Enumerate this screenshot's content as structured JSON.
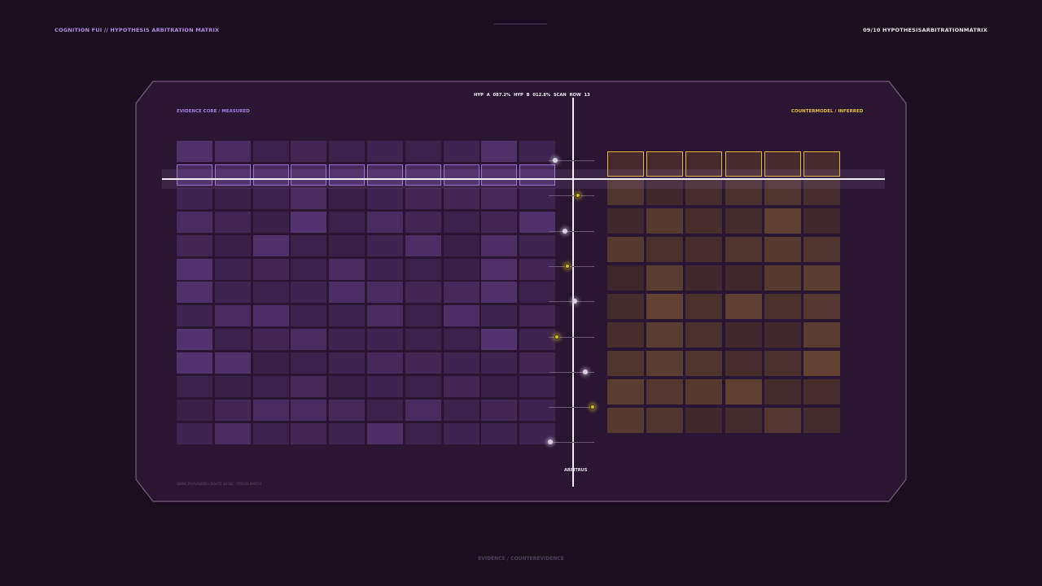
{
  "header": {
    "left_title": "COGNITION FUI // HYPOTHESIS ARBITRATION MATRIX",
    "right_title": "09/10  HYPOTHESISARBITRATIONMATRIX"
  },
  "panel": {
    "left_label": "EVIDENCE CORE / MEASURED",
    "right_label": "COUNTERMODEL / INFERRED",
    "readout": "HYP A 087.2%  HYP B 012.8%  SCAN ROW 13",
    "arbiter_label": "ARBITRUS",
    "footer_meta": "SEMIC PROVABERS  /  ROUTE 14 SEC  /  FOCUS MATCH",
    "colors": {
      "evidence_accent": "#9a6fd8",
      "counter_accent": "#e6b93a",
      "frame": "#6b4a6f"
    }
  },
  "evidence_grid": {
    "cols": 10,
    "rows": 13,
    "highlight_row": 1,
    "levels": [
      [
        0.55,
        0.45,
        0.25,
        0.35,
        0.25,
        0.3,
        0.25,
        0.3,
        0.55,
        0.3
      ],
      [
        0.6,
        0.6,
        0.6,
        0.6,
        0.6,
        0.6,
        0.6,
        0.6,
        0.6,
        0.6
      ],
      [
        0.3,
        0.2,
        0.25,
        0.45,
        0.2,
        0.3,
        0.35,
        0.35,
        0.4,
        0.3
      ],
      [
        0.45,
        0.35,
        0.2,
        0.6,
        0.25,
        0.45,
        0.35,
        0.25,
        0.35,
        0.55
      ],
      [
        0.35,
        0.2,
        0.55,
        0.25,
        0.2,
        0.3,
        0.5,
        0.2,
        0.5,
        0.3
      ],
      [
        0.6,
        0.3,
        0.35,
        0.25,
        0.45,
        0.3,
        0.25,
        0.2,
        0.55,
        0.35
      ],
      [
        0.55,
        0.3,
        0.25,
        0.3,
        0.5,
        0.45,
        0.35,
        0.4,
        0.55,
        0.25
      ],
      [
        0.3,
        0.45,
        0.5,
        0.25,
        0.3,
        0.45,
        0.25,
        0.5,
        0.3,
        0.35
      ],
      [
        0.6,
        0.25,
        0.35,
        0.45,
        0.3,
        0.3,
        0.25,
        0.25,
        0.6,
        0.3
      ],
      [
        0.6,
        0.55,
        0.2,
        0.25,
        0.3,
        0.4,
        0.35,
        0.3,
        0.3,
        0.35
      ],
      [
        0.25,
        0.2,
        0.25,
        0.4,
        0.2,
        0.3,
        0.25,
        0.35,
        0.2,
        0.3
      ],
      [
        0.2,
        0.35,
        0.45,
        0.45,
        0.4,
        0.25,
        0.45,
        0.25,
        0.35,
        0.3
      ],
      [
        0.3,
        0.45,
        0.25,
        0.35,
        0.3,
        0.5,
        0.25,
        0.3,
        0.3,
        0.3
      ]
    ]
  },
  "counter_grid": {
    "cols": 6,
    "rows": 10,
    "highlight_row": 0,
    "levels": [
      [
        0.5,
        0.5,
        0.5,
        0.5,
        0.5,
        0.5
      ],
      [
        0.45,
        0.25,
        0.35,
        0.4,
        0.45,
        0.35
      ],
      [
        0.25,
        0.55,
        0.35,
        0.3,
        0.65,
        0.25
      ],
      [
        0.55,
        0.4,
        0.35,
        0.45,
        0.55,
        0.45
      ],
      [
        0.2,
        0.6,
        0.25,
        0.25,
        0.55,
        0.6
      ],
      [
        0.3,
        0.7,
        0.4,
        0.65,
        0.4,
        0.5
      ],
      [
        0.35,
        0.6,
        0.4,
        0.25,
        0.25,
        0.6
      ],
      [
        0.45,
        0.6,
        0.45,
        0.35,
        0.4,
        0.7
      ],
      [
        0.6,
        0.5,
        0.55,
        0.65,
        0.3,
        0.35
      ],
      [
        0.55,
        0.45,
        0.25,
        0.3,
        0.5,
        0.3
      ]
    ]
  },
  "arbiter_nodes": [
    {
      "kind": "w",
      "offset": -22
    },
    {
      "kind": "y",
      "offset": 6
    },
    {
      "kind": "w",
      "offset": -10
    },
    {
      "kind": "y",
      "offset": -7
    },
    {
      "kind": "w",
      "offset": 2
    },
    {
      "kind": "y",
      "offset": -20
    },
    {
      "kind": "w",
      "offset": 15
    },
    {
      "kind": "y",
      "offset": 24
    },
    {
      "kind": "w",
      "offset": -28
    }
  ],
  "footer": {
    "caption": "EVIDENCE / COUNTEREVIDENCE"
  }
}
